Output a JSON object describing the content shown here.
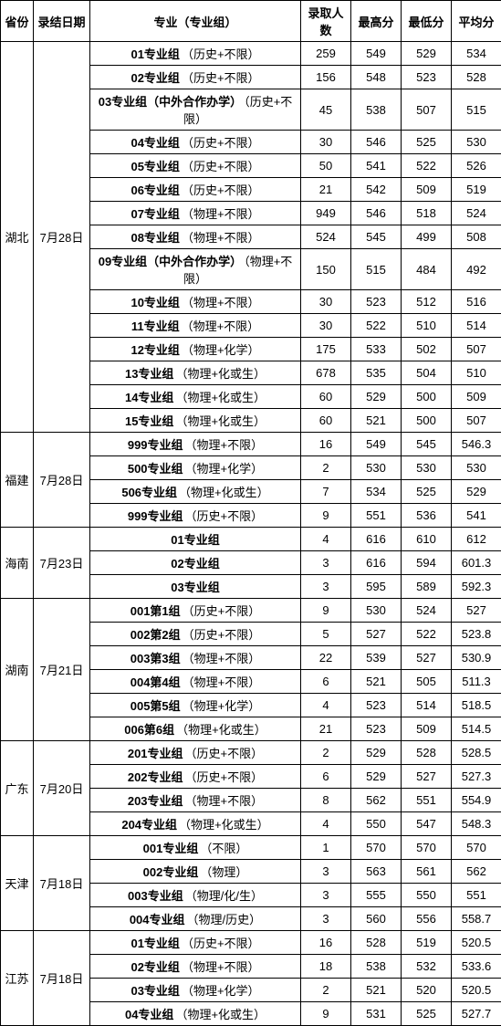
{
  "columns": {
    "province": "省份",
    "date": "录结日期",
    "major": "专业（专业组）",
    "count": "录取人数",
    "max": "最高分",
    "min": "最低分",
    "avg": "平均分"
  },
  "provinces": [
    {
      "name": "湖北",
      "date": "7月28日",
      "rows": [
        {
          "major": "01专业组",
          "suffix": "（历史+不限）",
          "count": 259,
          "max": 549,
          "min": 529,
          "avg": 534
        },
        {
          "major": "02专业组",
          "suffix": "（历史+不限）",
          "count": 156,
          "max": 548,
          "min": 523,
          "avg": 528
        },
        {
          "major": "03专业组（中外合作办学）",
          "suffix": "（历史+不限）",
          "count": 45,
          "max": 538,
          "min": 507,
          "avg": 515
        },
        {
          "major": "04专业组",
          "suffix": "（历史+不限）",
          "count": 30,
          "max": 546,
          "min": 525,
          "avg": 530
        },
        {
          "major": "05专业组",
          "suffix": "（历史+不限）",
          "count": 50,
          "max": 541,
          "min": 522,
          "avg": 526
        },
        {
          "major": "06专业组",
          "suffix": "（历史+不限）",
          "count": 21,
          "max": 542,
          "min": 509,
          "avg": 519
        },
        {
          "major": "07专业组",
          "suffix": "（物理+不限）",
          "count": 949,
          "max": 546,
          "min": 518,
          "avg": 524
        },
        {
          "major": "08专业组",
          "suffix": "（物理+不限）",
          "count": 524,
          "max": 545,
          "min": 499,
          "avg": 508
        },
        {
          "major": "09专业组（中外合作办学）",
          "suffix": "（物理+不限）",
          "count": 150,
          "max": 515,
          "min": 484,
          "avg": 492
        },
        {
          "major": "10专业组",
          "suffix": "（物理+不限）",
          "count": 30,
          "max": 523,
          "min": 512,
          "avg": 516
        },
        {
          "major": "11专业组",
          "suffix": "（物理+不限）",
          "count": 30,
          "max": 522,
          "min": 510,
          "avg": 514
        },
        {
          "major": "12专业组",
          "suffix": "（物理+化学）",
          "count": 175,
          "max": 533,
          "min": 502,
          "avg": 507
        },
        {
          "major": "13专业组",
          "suffix": "（物理+化或生）",
          "count": 678,
          "max": 535,
          "min": 504,
          "avg": 510
        },
        {
          "major": "14专业组",
          "suffix": "（物理+化或生）",
          "count": 60,
          "max": 529,
          "min": 500,
          "avg": 509
        },
        {
          "major": "15专业组",
          "suffix": "（物理+化或生）",
          "count": 60,
          "max": 521,
          "min": 500,
          "avg": 507
        }
      ]
    },
    {
      "name": "福建",
      "date": "7月28日",
      "rows": [
        {
          "major": "999专业组",
          "suffix": "（物理+不限）",
          "count": 16,
          "max": 549,
          "min": 545,
          "avg": 546.3
        },
        {
          "major": "500专业组",
          "suffix": "（物理+化学）",
          "count": 2,
          "max": 530,
          "min": 530,
          "avg": 530
        },
        {
          "major": "506专业组",
          "suffix": "（物理+化或生）",
          "count": 7,
          "max": 534,
          "min": 525,
          "avg": 529
        },
        {
          "major": "999专业组",
          "suffix": "（历史+不限）",
          "count": 9,
          "max": 551,
          "min": 536,
          "avg": 541
        }
      ]
    },
    {
      "name": "海南",
      "date": "7月23日",
      "rows": [
        {
          "major": "01专业组",
          "suffix": "",
          "count": 4,
          "max": 616,
          "min": 610,
          "avg": 612
        },
        {
          "major": "02专业组",
          "suffix": "",
          "count": 3,
          "max": 616,
          "min": 594,
          "avg": 601.3
        },
        {
          "major": "03专业组",
          "suffix": "",
          "count": 3,
          "max": 595,
          "min": 589,
          "avg": 592.3
        }
      ]
    },
    {
      "name": "湖南",
      "date": "7月21日",
      "rows": [
        {
          "major": "001第1组",
          "suffix": "（历史+不限）",
          "count": 9,
          "max": 530,
          "min": 524,
          "avg": 527
        },
        {
          "major": "002第2组",
          "suffix": "（历史+不限）",
          "count": 5,
          "max": 527,
          "min": 522,
          "avg": 523.8
        },
        {
          "major": "003第3组",
          "suffix": "（物理+不限）",
          "count": 22,
          "max": 539,
          "min": 527,
          "avg": 530.9
        },
        {
          "major": "004第4组",
          "suffix": "（物理+不限）",
          "count": 6,
          "max": 521,
          "min": 505,
          "avg": 511.3
        },
        {
          "major": "005第5组",
          "suffix": "（物理+化学）",
          "count": 4,
          "max": 523,
          "min": 514,
          "avg": 518.5
        },
        {
          "major": "006第6组",
          "suffix": "（物理+化或生）",
          "count": 21,
          "max": 523,
          "min": 509,
          "avg": 514.5
        }
      ]
    },
    {
      "name": "广东",
      "date": "7月20日",
      "rows": [
        {
          "major": "201专业组",
          "suffix": "（历史+不限）",
          "count": 2,
          "max": 529,
          "min": 528,
          "avg": 528.5
        },
        {
          "major": "202专业组",
          "suffix": "（历史+不限）",
          "count": 6,
          "max": 529,
          "min": 527,
          "avg": 527.3
        },
        {
          "major": "203专业组",
          "suffix": "（物理+不限）",
          "count": 8,
          "max": 562,
          "min": 551,
          "avg": 554.9
        },
        {
          "major": "204专业组",
          "suffix": "（物理+化或生）",
          "count": 4,
          "max": 550,
          "min": 547,
          "avg": 548.3
        }
      ]
    },
    {
      "name": "天津",
      "date": "7月18日",
      "rows": [
        {
          "major": "001专业组",
          "suffix": "（不限）",
          "count": 1,
          "max": 570,
          "min": 570,
          "avg": 570
        },
        {
          "major": "002专业组",
          "suffix": "（物理）",
          "count": 3,
          "max": 563,
          "min": 561,
          "avg": 562
        },
        {
          "major": "003专业组",
          "suffix": "（物理/化/生）",
          "count": 3,
          "max": 555,
          "min": 550,
          "avg": 551
        },
        {
          "major": "004专业组",
          "suffix": "（物理/历史）",
          "count": 3,
          "max": 560,
          "min": 556,
          "avg": 558.7
        }
      ]
    },
    {
      "name": "江苏",
      "date": "7月18日",
      "rows": [
        {
          "major": "01专业组",
          "suffix": "（历史+不限）",
          "count": 16,
          "max": 528,
          "min": 519,
          "avg": 520.5
        },
        {
          "major": "02专业组",
          "suffix": "（物理+不限）",
          "count": 18,
          "max": 538,
          "min": 532,
          "avg": 533.6
        },
        {
          "major": "03专业组",
          "suffix": "（物理+化学）",
          "count": 2,
          "max": 521,
          "min": 520,
          "avg": 520.5
        },
        {
          "major": "04专业组",
          "suffix": "（物理+化或生）",
          "count": 9,
          "max": 531,
          "min": 525,
          "avg": 527.7
        }
      ]
    }
  ]
}
